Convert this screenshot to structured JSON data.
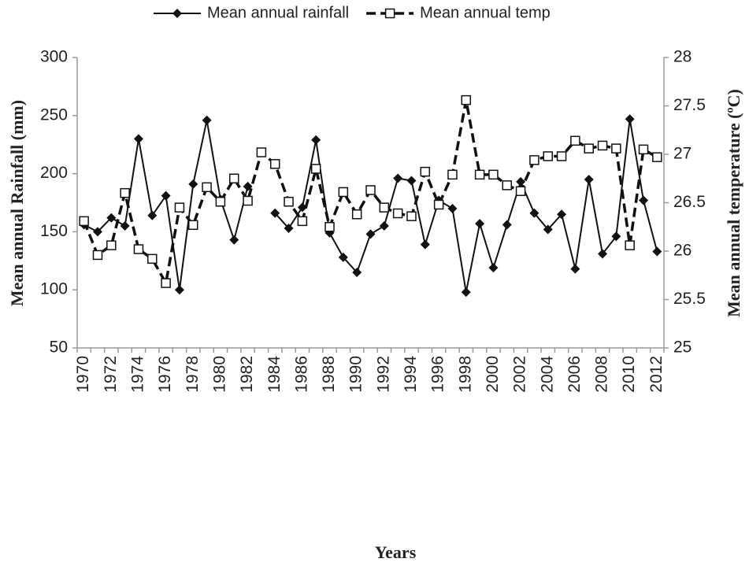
{
  "chart_data": {
    "type": "line",
    "categories": [
      "1970",
      null,
      "1972",
      null,
      "1974",
      null,
      "1976",
      null,
      "1978",
      null,
      "1980",
      null,
      "1982",
      null,
      "1984",
      null,
      "1986",
      null,
      "1988",
      null,
      "1990",
      null,
      "1992",
      null,
      "1994",
      null,
      "1996",
      null,
      "1998",
      null,
      "2000",
      null,
      "2002",
      null,
      "2004",
      null,
      "2006",
      null,
      "2008",
      null,
      "2010",
      null,
      "2012"
    ],
    "x_label": "Years",
    "y_label": "Mean annual Rainfall (mm)",
    "y2_label": "Mean annual temperature (ºC)",
    "ylim": [
      50,
      300
    ],
    "yticks": [
      50,
      100,
      150,
      200,
      250,
      300
    ],
    "y2lim": [
      25,
      28
    ],
    "y2ticks": [
      25,
      25.5,
      26,
      26.5,
      27,
      27.5,
      28
    ],
    "legend": "top",
    "series": [
      {
        "name": "Mean annual rainfall",
        "color": "#111111",
        "marker": "diamond",
        "dash": "solid",
        "values": [
          156,
          150,
          162,
          155,
          230,
          164,
          181,
          100,
          191,
          246,
          178,
          143,
          189,
          null,
          166,
          153,
          171,
          229,
          149,
          128,
          115,
          148,
          155,
          196,
          194,
          139,
          177,
          170,
          98,
          157,
          119,
          156,
          193,
          166,
          152,
          165,
          118,
          195,
          131,
          146,
          247,
          177,
          133
        ]
      },
      {
        "name": "Mean annual temp",
        "color": "#111111",
        "marker": "square",
        "dash": "dashed",
        "axis": "y2",
        "values": [
          26.31,
          25.96,
          26.06,
          26.6,
          26.02,
          25.92,
          25.67,
          26.45,
          26.27,
          26.66,
          26.51,
          26.75,
          26.52,
          27.02,
          26.9,
          26.51,
          26.31,
          26.85,
          26.25,
          26.61,
          26.38,
          26.63,
          26.45,
          26.39,
          26.36,
          26.82,
          26.48,
          26.79,
          27.56,
          26.79,
          26.79,
          26.68,
          26.62,
          26.94,
          26.98,
          26.98,
          27.14,
          27.06,
          27.09,
          27.06,
          26.06,
          27.05,
          26.97
        ]
      }
    ]
  }
}
